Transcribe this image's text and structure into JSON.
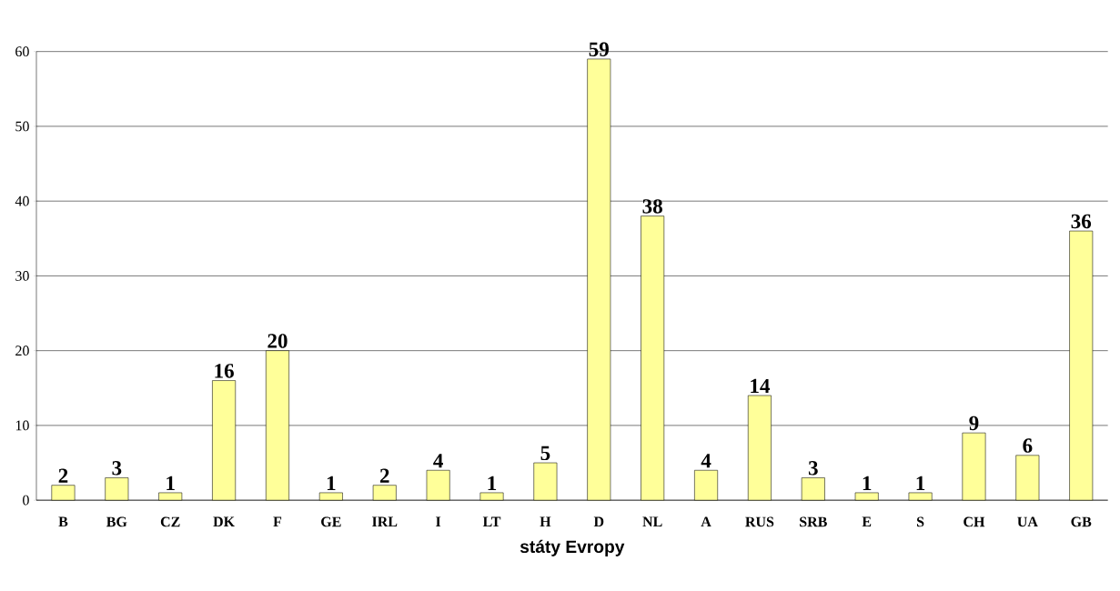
{
  "chart_data": {
    "type": "bar",
    "xlabel": "státy Evropy",
    "categories": [
      "B",
      "BG",
      "CZ",
      "DK",
      "F",
      "GE",
      "IRL",
      "I",
      "LT",
      "H",
      "D",
      "NL",
      "A",
      "RUS",
      "SRB",
      "E",
      "S",
      "CH",
      "UA",
      "GB"
    ],
    "values": [
      2,
      3,
      1,
      16,
      20,
      1,
      2,
      4,
      1,
      5,
      59,
      38,
      4,
      14,
      3,
      1,
      1,
      9,
      6,
      36
    ],
    "color": "#ffff99",
    "ylim": [
      0,
      60
    ],
    "yticks": [
      0,
      10,
      20,
      30,
      40,
      50,
      60
    ],
    "grid": "y",
    "data_labels": true
  }
}
